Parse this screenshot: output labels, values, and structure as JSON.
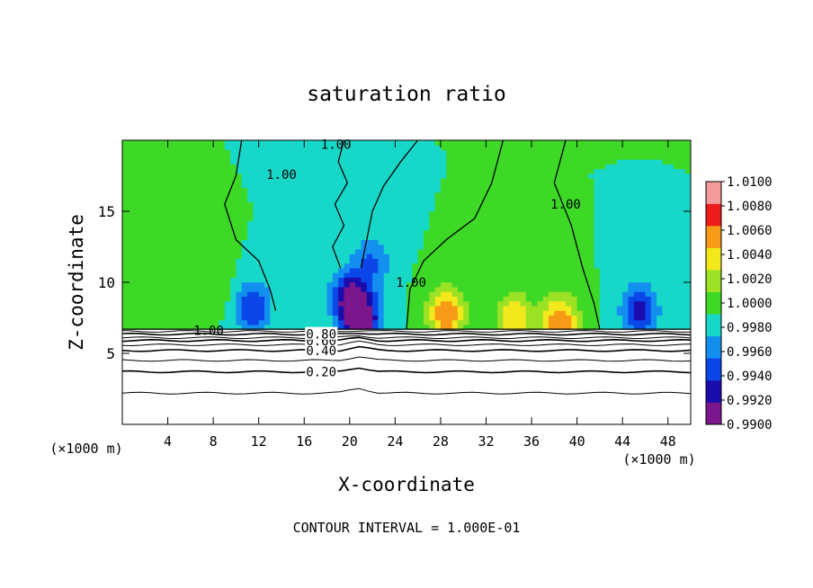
{
  "chart_data": {
    "type": "heatmap",
    "title": "saturation ratio",
    "xlabel": "X-coordinate",
    "ylabel": "Z-coordinate",
    "x_unit_left": "(×1000 m)",
    "x_unit_right": "(×1000 m)",
    "xlim": [
      0,
      50
    ],
    "ylim": [
      0,
      20
    ],
    "xticks": [
      4,
      8,
      12,
      16,
      20,
      24,
      28,
      32,
      36,
      40,
      44,
      48
    ],
    "xtick_labels": [
      "4",
      "8",
      "12",
      "16",
      "20",
      "24",
      "28",
      "32",
      "36",
      "40",
      "44",
      "48"
    ],
    "yticks": [
      5,
      10,
      15
    ],
    "ytick_labels": [
      "5",
      "10",
      "15"
    ],
    "footer": "CONTOUR INTERVAL = 1.000E-01",
    "colorbar": {
      "levels": [
        0.99,
        0.992,
        0.994,
        0.996,
        0.998,
        1.0,
        1.002,
        1.004,
        1.006,
        1.008,
        1.01
      ],
      "tick_labels": [
        "0.9900",
        "0.9920",
        "0.9940",
        "0.9960",
        "0.9980",
        "1.0000",
        "1.0020",
        "1.0040",
        "1.0060",
        "1.0080",
        "1.0100"
      ],
      "colors": [
        "#7b168c",
        "#1a0dab",
        "#0a46e8",
        "#138ff0",
        "#17d8c8",
        "#3ed826",
        "#9be224",
        "#f2e81c",
        "#f79a17",
        "#ee1c1c",
        "#f59a9a"
      ]
    },
    "upper_field": {
      "base_value": 1.0,
      "features": [
        {
          "x": 11.5,
          "z": 8.2,
          "value": 0.994
        },
        {
          "x": 20.0,
          "z": 9.0,
          "value": 0.992
        },
        {
          "x": 21.0,
          "z": 7.3,
          "value": 0.99
        },
        {
          "x": 22.0,
          "z": 11.5,
          "value": 0.996
        },
        {
          "x": 28.5,
          "z": 7.8,
          "value": 1.008
        },
        {
          "x": 34.5,
          "z": 7.4,
          "value": 1.006
        },
        {
          "x": 38.5,
          "z": 7.2,
          "value": 1.008
        },
        {
          "x": 45.5,
          "z": 8.0,
          "value": 0.993
        },
        {
          "x": 8.0,
          "z": 10.0,
          "value": 1.002
        },
        {
          "x": 3.0,
          "z": 12.0,
          "value": 1.001
        },
        {
          "x": 17.0,
          "z": 17.0,
          "value": 0.998
        }
      ]
    },
    "contours_upper": [
      {
        "label": "1.00",
        "label_x": 18.8,
        "label_z": 19.7
      },
      {
        "label": "1.00",
        "label_x": 14.0,
        "label_z": 17.6
      },
      {
        "label": "1.00",
        "label_x": 39.0,
        "label_z": 15.5
      },
      {
        "label": "1.00",
        "label_x": 25.4,
        "label_z": 10.0
      },
      {
        "label": "1.00",
        "label_x": 7.6,
        "label_z": 6.6
      }
    ],
    "contours_lower": [
      {
        "value": 0.1,
        "z": 2.2
      },
      {
        "value": 0.2,
        "z": 3.7,
        "label": "0.20"
      },
      {
        "value": 0.3,
        "z": 4.5
      },
      {
        "value": 0.4,
        "z": 5.2,
        "label": "0.40"
      },
      {
        "value": 0.5,
        "z": 5.6
      },
      {
        "value": 0.6,
        "z": 5.9,
        "label": "0.60"
      },
      {
        "value": 0.7,
        "z": 6.1
      },
      {
        "value": 0.8,
        "z": 6.35,
        "label": "0.80"
      },
      {
        "value": 0.9,
        "z": 6.55
      }
    ],
    "cloud_base_z": 6.7,
    "legend_placement": "right"
  }
}
